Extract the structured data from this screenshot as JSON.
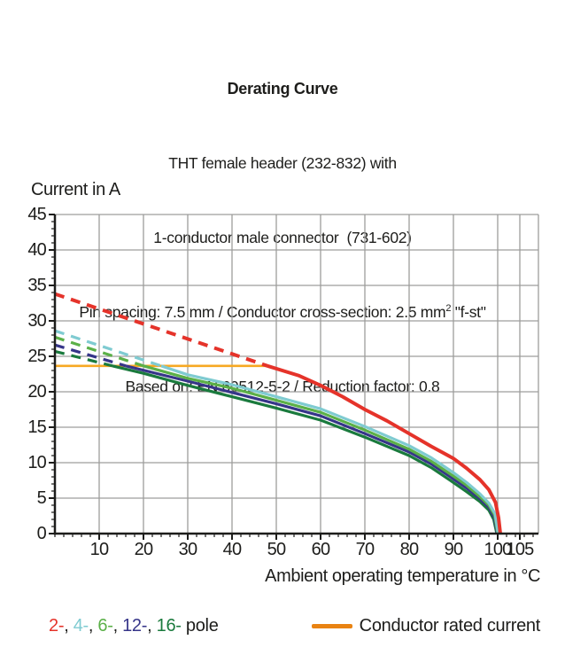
{
  "header": {
    "title": "Derating Curve",
    "line2": "THT female header (232-832) with",
    "line3": "1-conductor male connector  (731-602)",
    "line4_pre": "Pin spacing: 7.5 mm / Conductor cross-section: 2.5 mm",
    "line4_sup": "2",
    "line4_post": " \"f-st\"",
    "line5": "Based on: EN 60512-5-2 / Reduction factor: 0.8"
  },
  "chart_data": {
    "type": "line",
    "y_axis_title": "Current in A",
    "xlabel": "Ambient operating temperature in °C",
    "xlim": [
      0,
      109
    ],
    "ylim": [
      0,
      45
    ],
    "x_major_ticks": [
      10,
      20,
      30,
      40,
      50,
      60,
      70,
      80,
      90,
      100,
      105
    ],
    "x_minor_step": 2,
    "y_major_ticks": [
      0,
      5,
      10,
      15,
      20,
      25,
      30,
      35,
      40,
      45
    ],
    "y_minor_step": 1,
    "grid": true,
    "grid_color": "#9d9d9c",
    "axis_color": "#1d1d1b",
    "rated_current": {
      "label": "Conductor rated current",
      "value": 23.65,
      "x_start": 0,
      "x_end": 48.5,
      "line_color": "#f7a823",
      "swatch_color": "#e98312"
    },
    "legend_suffix": "pole",
    "legend_separator": ", ",
    "series": [
      {
        "name": "16-pole",
        "legend": "16-",
        "color": "#1a7a3d",
        "dashed": [
          [
            0,
            25.7
          ],
          [
            13,
            23.65
          ]
        ],
        "solid": [
          [
            13,
            23.65
          ],
          [
            20,
            22.6
          ],
          [
            30,
            20.9
          ],
          [
            40,
            19.3
          ],
          [
            50,
            17.7
          ],
          [
            60,
            16.0
          ],
          [
            70,
            13.6
          ],
          [
            80,
            11.0
          ],
          [
            85,
            9.3
          ],
          [
            90,
            7.2
          ],
          [
            93,
            5.9
          ],
          [
            96,
            4.5
          ],
          [
            98,
            3.3
          ],
          [
            99.1,
            2.0
          ],
          [
            99.8,
            0
          ]
        ]
      },
      {
        "name": "12-pole",
        "legend": "12-",
        "color": "#363589",
        "dashed": [
          [
            0,
            26.6
          ],
          [
            16,
            23.65
          ]
        ],
        "solid": [
          [
            16,
            23.65
          ],
          [
            30,
            21.5
          ],
          [
            40,
            19.9
          ],
          [
            50,
            18.3
          ],
          [
            60,
            16.6
          ],
          [
            70,
            14.1
          ],
          [
            80,
            11.5
          ],
          [
            85,
            9.8
          ],
          [
            90,
            7.7
          ],
          [
            93,
            6.4
          ],
          [
            96,
            4.9
          ],
          [
            98,
            3.7
          ],
          [
            99.2,
            2.3
          ],
          [
            99.9,
            0
          ]
        ]
      },
      {
        "name": "6-pole",
        "legend": "6-",
        "color": "#5bb048",
        "dashed": [
          [
            0,
            27.7
          ],
          [
            20,
            23.65
          ]
        ],
        "solid": [
          [
            20,
            23.65
          ],
          [
            30,
            21.9
          ],
          [
            40,
            20.5
          ],
          [
            50,
            18.8
          ],
          [
            60,
            17.1
          ],
          [
            70,
            14.6
          ],
          [
            80,
            11.9
          ],
          [
            85,
            10.2
          ],
          [
            90,
            8.1
          ],
          [
            93,
            6.8
          ],
          [
            96,
            5.2
          ],
          [
            98,
            4.0
          ],
          [
            99.3,
            2.6
          ],
          [
            100,
            0
          ]
        ]
      },
      {
        "name": "4-pole",
        "legend": "4-",
        "color": "#7fcbd1",
        "dashed": [
          [
            0,
            28.6
          ],
          [
            24,
            23.65
          ]
        ],
        "solid": [
          [
            24,
            23.65
          ],
          [
            30,
            22.4
          ],
          [
            40,
            21.0
          ],
          [
            50,
            19.3
          ],
          [
            60,
            17.6
          ],
          [
            70,
            15.1
          ],
          [
            80,
            12.4
          ],
          [
            85,
            10.7
          ],
          [
            90,
            8.6
          ],
          [
            93,
            7.2
          ],
          [
            96,
            5.6
          ],
          [
            98,
            4.3
          ],
          [
            99.4,
            2.8
          ],
          [
            100.1,
            0
          ]
        ]
      },
      {
        "name": "2-pole",
        "legend": "2-",
        "color": "#e5332a",
        "dashed": [
          [
            0,
            33.8
          ],
          [
            48,
            23.65
          ]
        ],
        "solid": [
          [
            48,
            23.65
          ],
          [
            55,
            22.3
          ],
          [
            60,
            20.9
          ],
          [
            65,
            19.3
          ],
          [
            70,
            17.5
          ],
          [
            75,
            15.9
          ],
          [
            80,
            14.1
          ],
          [
            85,
            12.3
          ],
          [
            90,
            10.6
          ],
          [
            93,
            9.2
          ],
          [
            96,
            7.6
          ],
          [
            98,
            6.2
          ],
          [
            99.5,
            4.4
          ],
          [
            100.2,
            2.2
          ],
          [
            100.6,
            0
          ]
        ]
      }
    ]
  }
}
